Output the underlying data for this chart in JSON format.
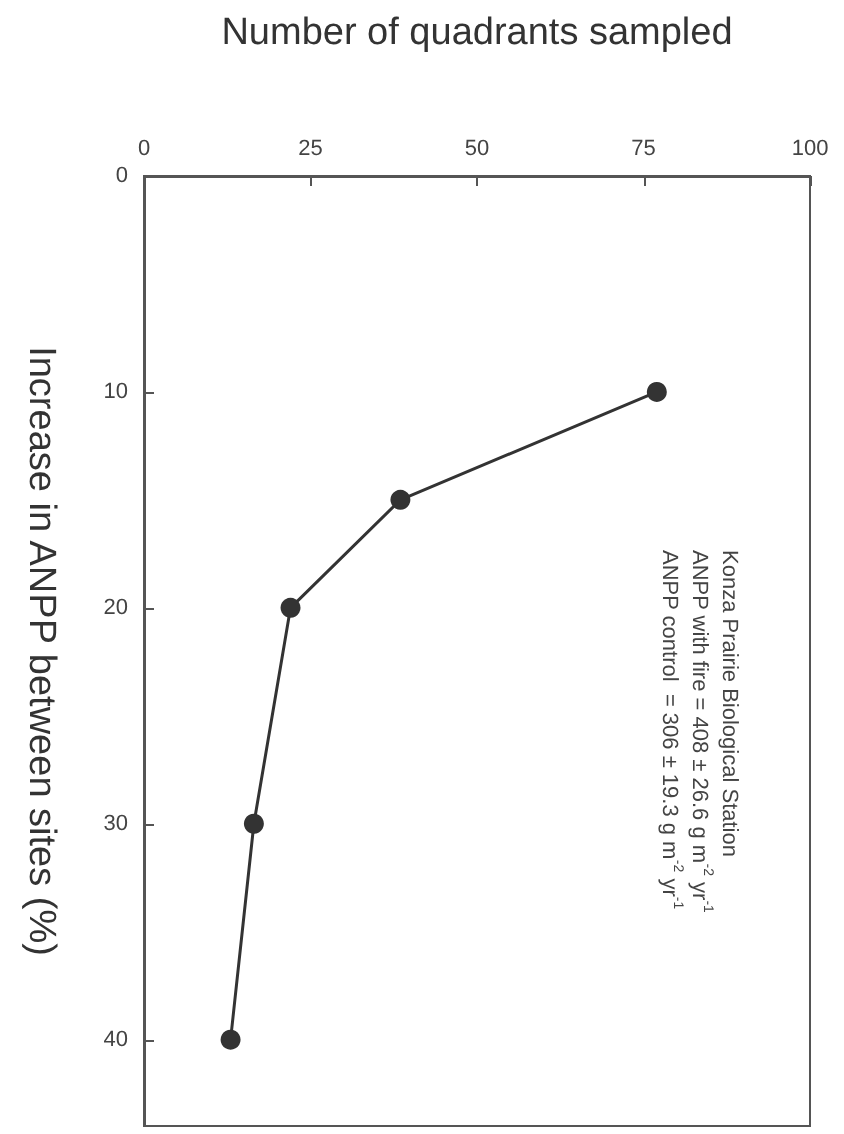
{
  "chart_data": {
    "type": "line",
    "xlabel": "Number of quadrants sampled",
    "ylabel": "Increase in ANPP between sites (%)",
    "x": [
      77,
      38.5,
      22,
      16.5,
      13
    ],
    "series": [
      {
        "color": "#333333",
        "values": [
          10,
          15,
          20,
          30,
          40
        ]
      }
    ],
    "xlim": [
      0,
      100
    ],
    "xticks": [
      0,
      25,
      50,
      75,
      100
    ],
    "ylim": [
      44,
      0
    ],
    "yticks": [
      0,
      10,
      20,
      30,
      40
    ],
    "annotations": [
      "Konza Prairie Biological Station",
      "ANPP with fire = 408 ± 26.6 g m$^{-2}$ yr$^{-1}$",
      "ANPP control  = 306 ± 19.3 g m$^{-2}$ yr$^{-1}$"
    ],
    "marker": "circle",
    "line_style": "solid",
    "grid": false
  }
}
